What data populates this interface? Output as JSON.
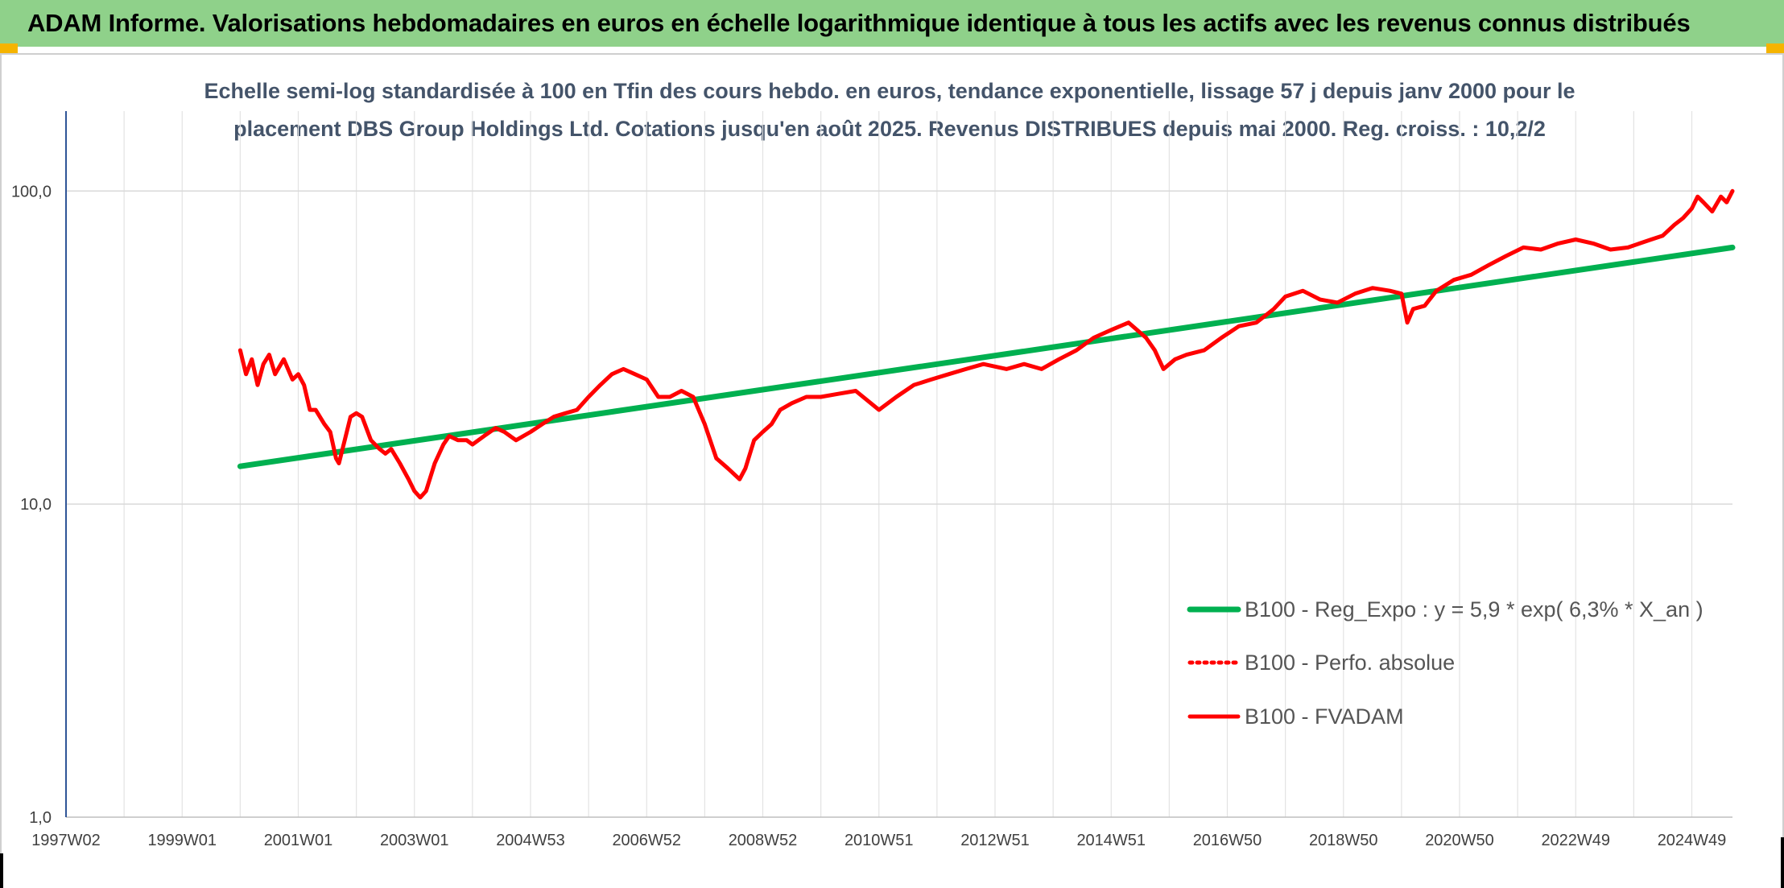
{
  "header": {
    "title": "ADAM Informe. Valorisations hebdomadaires en euros en échelle logarithmique identique à tous les actifs avec les revenus connus distribués"
  },
  "colors": {
    "header_bg": "#8fd18a",
    "regression": "#00b050",
    "perf": "#ff0000",
    "fvadam": "#ff0000",
    "grid": "#d9d9d9"
  },
  "chart_data": {
    "type": "line",
    "title_lines": [
      "Echelle semi-log standardisée à 100 en Tfin des cours hebdo. en euros, tendance exponentielle, lissage 57 j depuis janv 2000 pour le",
      "placement DBS Group Holdings Ltd. Cotations jusqu'en août 2025. Revenus DISTRIBUES depuis mai 2000. Reg. croiss. : 10,2/2"
    ],
    "y_scale": "log",
    "ylim": [
      1,
      180
    ],
    "y_ticks": [
      {
        "value": 1,
        "label": "1,0"
      },
      {
        "value": 10,
        "label": "10,0"
      },
      {
        "value": 100,
        "label": "100,0"
      }
    ],
    "xlim": [
      1997.0,
      2025.7
    ],
    "x_ticks": [
      {
        "value": 1997.0,
        "label": "1997W02"
      },
      {
        "value": 1999.0,
        "label": "1999W01"
      },
      {
        "value": 2001.0,
        "label": "2001W01"
      },
      {
        "value": 2003.0,
        "label": "2003W01"
      },
      {
        "value": 2005.0,
        "label": "2004W53"
      },
      {
        "value": 2007.0,
        "label": "2006W52"
      },
      {
        "value": 2009.0,
        "label": "2008W52"
      },
      {
        "value": 2011.0,
        "label": "2010W51"
      },
      {
        "value": 2013.0,
        "label": "2012W51"
      },
      {
        "value": 2015.0,
        "label": "2014W51"
      },
      {
        "value": 2017.0,
        "label": "2016W50"
      },
      {
        "value": 2019.0,
        "label": "2018W50"
      },
      {
        "value": 2021.0,
        "label": "2020W50"
      },
      {
        "value": 2023.0,
        "label": "2022W49"
      },
      {
        "value": 2025.0,
        "label": "2024W49"
      }
    ],
    "grid": true,
    "legend_position": "bottom-right",
    "series": [
      {
        "name": "B100 - Reg_Expo : y = 5,9 * exp( 6,3% *  X_an )",
        "style": "solid",
        "color": "#00b050",
        "x": [
          2000.0,
          2025.7
        ],
        "y": [
          13.2,
          66.0
        ]
      },
      {
        "name": "B100 - Perfo. absolue",
        "style": "dotted",
        "color": "#ff0000",
        "x": [],
        "y": []
      },
      {
        "name": "B100 - FVADAM",
        "style": "solid",
        "color": "#ff0000",
        "x": [
          2000.0,
          2000.1,
          2000.2,
          2000.3,
          2000.4,
          2000.5,
          2000.6,
          2000.75,
          2000.9,
          2001.0,
          2001.1,
          2001.2,
          2001.3,
          2001.45,
          2001.55,
          2001.65,
          2001.7,
          2001.8,
          2001.9,
          2002.0,
          2002.1,
          2002.25,
          2002.4,
          2002.5,
          2002.6,
          2002.75,
          2002.9,
          2003.0,
          2003.1,
          2003.2,
          2003.35,
          2003.5,
          2003.6,
          2003.75,
          2003.9,
          2004.0,
          2004.2,
          2004.4,
          2004.55,
          2004.75,
          2005.0,
          2005.2,
          2005.4,
          2005.6,
          2005.8,
          2006.0,
          2006.2,
          2006.4,
          2006.6,
          2006.8,
          2007.0,
          2007.2,
          2007.4,
          2007.6,
          2007.8,
          2008.0,
          2008.2,
          2008.4,
          2008.6,
          2008.7,
          2008.85,
          2009.0,
          2009.15,
          2009.3,
          2009.5,
          2009.75,
          2010.0,
          2010.3,
          2010.6,
          2011.0,
          2011.3,
          2011.6,
          2011.9,
          2012.2,
          2012.5,
          2012.8,
          2013.2,
          2013.5,
          2013.8,
          2014.1,
          2014.4,
          2014.7,
          2015.0,
          2015.3,
          2015.6,
          2015.75,
          2015.9,
          2016.1,
          2016.3,
          2016.6,
          2016.9,
          2017.2,
          2017.5,
          2017.8,
          2018.0,
          2018.3,
          2018.6,
          2018.9,
          2019.2,
          2019.5,
          2019.8,
          2020.0,
          2020.1,
          2020.2,
          2020.4,
          2020.6,
          2020.9,
          2021.2,
          2021.5,
          2021.8,
          2022.1,
          2022.4,
          2022.7,
          2023.0,
          2023.3,
          2023.6,
          2023.9,
          2024.1,
          2024.3,
          2024.5,
          2024.7,
          2024.85,
          2025.0,
          2025.1,
          2025.2,
          2025.35,
          2025.5,
          2025.6,
          2025.7
        ],
        "y": [
          31,
          26,
          29,
          24,
          28,
          30,
          26,
          29,
          25,
          26,
          24,
          20,
          20,
          18,
          17,
          14,
          13.5,
          16,
          19,
          19.5,
          19,
          16,
          15,
          14.5,
          15,
          13.5,
          12,
          11,
          10.5,
          11,
          13.5,
          15.5,
          16.5,
          16,
          16,
          15.5,
          16.5,
          17.5,
          17,
          16,
          17,
          18,
          19,
          19.5,
          20,
          22,
          24,
          26,
          27,
          26,
          25,
          22,
          22,
          23,
          22,
          18,
          14,
          13,
          12,
          13,
          16,
          17,
          18,
          20,
          21,
          22,
          22,
          22.5,
          23,
          20,
          22,
          24,
          25,
          26,
          27,
          28,
          27,
          28,
          27,
          29,
          31,
          34,
          36,
          38,
          34,
          31,
          27,
          29,
          30,
          31,
          34,
          37,
          38,
          42,
          46,
          48,
          45,
          44,
          47,
          49,
          48,
          47,
          38,
          42,
          43,
          48,
          52,
          54,
          58,
          62,
          66,
          65,
          68,
          70,
          68,
          65,
          66,
          68,
          70,
          72,
          78,
          82,
          88,
          96,
          92,
          86,
          96,
          92,
          100
        ]
      }
    ]
  }
}
